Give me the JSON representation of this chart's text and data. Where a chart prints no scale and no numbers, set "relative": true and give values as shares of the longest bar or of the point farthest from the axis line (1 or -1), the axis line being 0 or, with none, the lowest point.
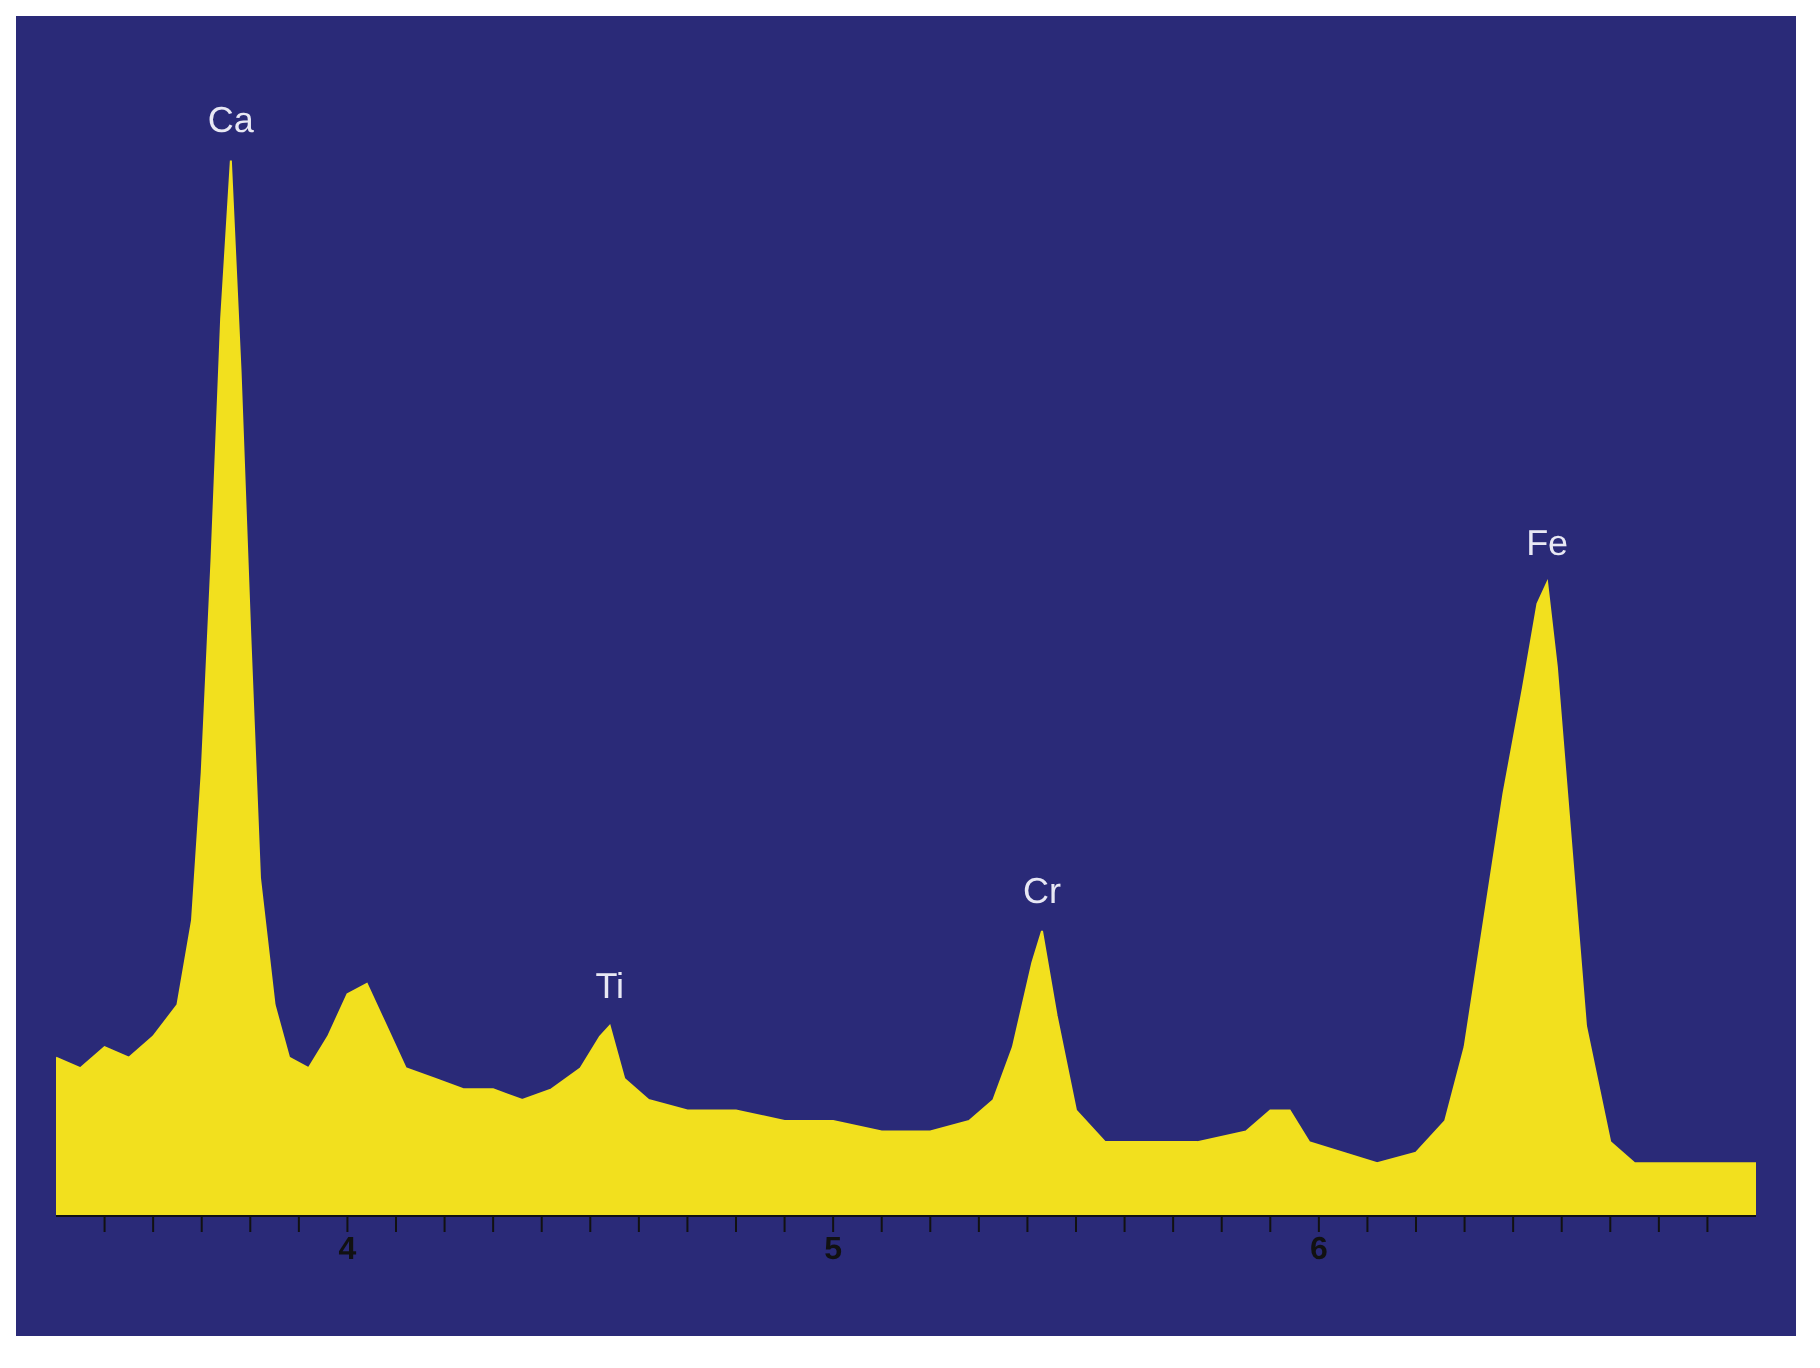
{
  "chart_data": {
    "type": "area",
    "relative": true,
    "color": "#f2e01e",
    "x": [
      3.4,
      3.45,
      3.5,
      3.55,
      3.6,
      3.65,
      3.68,
      3.7,
      3.72,
      3.74,
      3.76,
      3.78,
      3.8,
      3.82,
      3.85,
      3.88,
      3.92,
      3.96,
      4.0,
      4.04,
      4.08,
      4.12,
      4.18,
      4.24,
      4.3,
      4.36,
      4.42,
      4.48,
      4.52,
      4.54,
      4.57,
      4.62,
      4.7,
      4.8,
      4.9,
      5.0,
      5.1,
      5.2,
      5.28,
      5.33,
      5.37,
      5.41,
      5.43,
      5.46,
      5.5,
      5.56,
      5.65,
      5.75,
      5.85,
      5.9,
      5.94,
      5.98,
      6.05,
      6.12,
      6.2,
      6.26,
      6.3,
      6.34,
      6.38,
      6.42,
      6.45,
      6.47,
      6.49,
      6.52,
      6.55,
      6.6,
      6.65,
      6.75,
      6.85,
      6.9
    ],
    "values": [
      0.15,
      0.14,
      0.16,
      0.15,
      0.17,
      0.2,
      0.28,
      0.42,
      0.62,
      0.85,
      1.0,
      0.8,
      0.55,
      0.32,
      0.2,
      0.15,
      0.14,
      0.17,
      0.21,
      0.22,
      0.18,
      0.14,
      0.13,
      0.12,
      0.12,
      0.11,
      0.12,
      0.14,
      0.17,
      0.18,
      0.13,
      0.11,
      0.1,
      0.1,
      0.09,
      0.09,
      0.08,
      0.08,
      0.09,
      0.11,
      0.16,
      0.24,
      0.27,
      0.19,
      0.1,
      0.07,
      0.07,
      0.07,
      0.08,
      0.1,
      0.1,
      0.07,
      0.06,
      0.05,
      0.06,
      0.09,
      0.16,
      0.28,
      0.4,
      0.5,
      0.58,
      0.6,
      0.52,
      0.35,
      0.18,
      0.07,
      0.05,
      0.05,
      0.05,
      0.05
    ],
    "xlim": [
      3.4,
      6.9
    ],
    "xticks": [
      {
        "value": 3.5,
        "label": null
      },
      {
        "value": 3.6,
        "label": null
      },
      {
        "value": 3.7,
        "label": null
      },
      {
        "value": 3.8,
        "label": null
      },
      {
        "value": 3.9,
        "label": null
      },
      4,
      {
        "value": 4.1,
        "label": null
      },
      {
        "value": 4.2,
        "label": null
      },
      {
        "value": 4.3,
        "label": null
      },
      {
        "value": 4.4,
        "label": null
      },
      {
        "value": 4.5,
        "label": null
      },
      {
        "value": 4.6,
        "label": null
      },
      {
        "value": 4.7,
        "label": null
      },
      {
        "value": 4.8,
        "label": null
      },
      {
        "value": 4.9,
        "label": null
      },
      5,
      {
        "value": 5.1,
        "label": null
      },
      {
        "value": 5.2,
        "label": null
      },
      {
        "value": 5.3,
        "label": null
      },
      {
        "value": 5.4,
        "label": null
      },
      {
        "value": 5.5,
        "label": null
      },
      {
        "value": 5.6,
        "label": null
      },
      {
        "value": 5.7,
        "label": null
      },
      {
        "value": 5.8,
        "label": null
      },
      {
        "value": 5.9,
        "label": null
      },
      6,
      {
        "value": 6.1,
        "label": null
      },
      {
        "value": 6.2,
        "label": null
      },
      {
        "value": 6.3,
        "label": null
      },
      {
        "value": 6.4,
        "label": null
      },
      {
        "value": 6.5,
        "label": null
      },
      {
        "value": 6.6,
        "label": null
      },
      {
        "value": 6.7,
        "label": null
      },
      {
        "value": 6.8,
        "label": null
      }
    ],
    "annotations": [
      {
        "text": "Ca",
        "x": 3.76,
        "y": 1.0
      },
      {
        "text": "Ti",
        "x": 4.54,
        "y": 0.18
      },
      {
        "text": "Cr",
        "x": 5.43,
        "y": 0.27
      },
      {
        "text": "Fe",
        "x": 6.47,
        "y": 0.6
      }
    ]
  }
}
